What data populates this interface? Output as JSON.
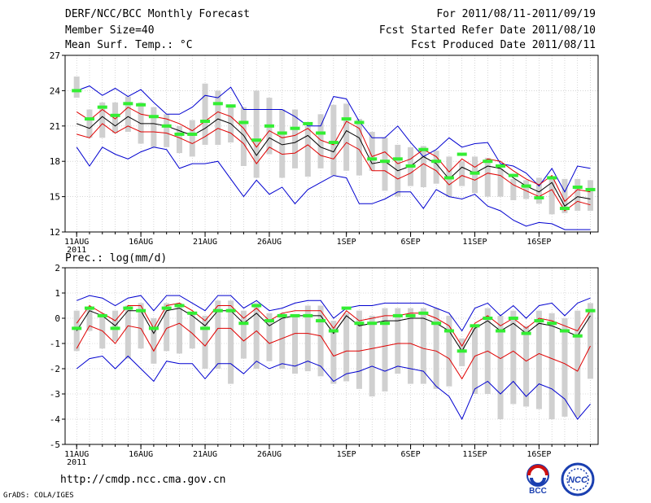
{
  "header": {
    "title": "DERF/NCC/BCC Monthly Forecast",
    "member_size": "Member Size=40",
    "variable": "Mean Surf. Temp.: °C",
    "period": "For 2011/08/11-2011/09/19",
    "started": "Fcst Started Refer Date 2011/08/10",
    "produced": "Fcst Produced Date 2011/08/11"
  },
  "footer": {
    "url": "http://cmdp.ncc.cma.gov.cn",
    "credit": "GrADS: COLA/IGES",
    "logo_bcc": "BCC",
    "logo_ncc": "NCC"
  },
  "colors": {
    "mean": "#000000",
    "spread": "#e00000",
    "envelope": "#0000d0",
    "box": "#d0d0d0",
    "marker": "#33ee33"
  },
  "chart_data": [
    {
      "type": "line",
      "title": "Mean Surf. Temp.: °C",
      "ylim": [
        12,
        27
      ],
      "yticks": [
        12,
        15,
        18,
        21,
        24,
        27
      ],
      "xlabels": [
        "11AUG",
        "16AUG",
        "21AUG",
        "26AUG",
        "1SEP",
        "6SEP",
        "11SEP",
        "16SEP"
      ],
      "xlabel_days": [
        0,
        5,
        10,
        15,
        21,
        26,
        31,
        36
      ],
      "year_label": "2011",
      "series": {
        "mean": [
          21.2,
          20.8,
          21.8,
          21,
          21.8,
          21.2,
          21.2,
          21,
          20.6,
          20.2,
          20.8,
          21.6,
          21.2,
          20.2,
          18.5,
          20,
          19.4,
          19.6,
          20.2,
          19.2,
          18.8,
          20.6,
          20,
          17.8,
          18,
          17.2,
          17.6,
          18.4,
          17.8,
          16.5,
          17.5,
          17.0,
          17.6,
          17.4,
          16.6,
          15.9,
          15.4,
          16.2,
          14.2,
          15,
          14.8
        ],
        "upper": [
          22.2,
          21.5,
          22.4,
          21.6,
          22.6,
          22,
          21.8,
          21.6,
          21.2,
          20.6,
          21.4,
          22.2,
          21.8,
          20.8,
          19.2,
          20.6,
          20,
          20.2,
          20.8,
          19.8,
          19.4,
          21.4,
          20.8,
          18.4,
          18.8,
          17.8,
          18.2,
          19,
          18.4,
          17.1,
          18.2,
          17.5,
          18.2,
          18,
          17.2,
          16.5,
          16,
          16.8,
          14.6,
          15.6,
          15.4
        ],
        "lower": [
          20.3,
          20,
          21.2,
          20.4,
          21.0,
          20.5,
          20.5,
          20.4,
          20,
          19.5,
          20.1,
          20.8,
          20.4,
          19.5,
          17.8,
          19.2,
          18.6,
          18.7,
          19.4,
          18.5,
          18.2,
          19.6,
          19.0,
          17.2,
          17.2,
          16.5,
          17,
          17.8,
          17.2,
          16,
          16.8,
          16.4,
          17,
          16.8,
          16,
          15.5,
          15,
          15.6,
          13.8,
          14.6,
          14.3
        ],
        "max": [
          24,
          24.4,
          23.6,
          24.2,
          23.5,
          24.1,
          23.0,
          22.0,
          22.0,
          22.6,
          23.6,
          23.4,
          24.3,
          22.4,
          22.4,
          22.4,
          22.4,
          21.8,
          21.0,
          21.0,
          23.5,
          23.3,
          21.4,
          20.0,
          20.0,
          21.0,
          19.6,
          18.4,
          19.0,
          20.0,
          19.2,
          19.5,
          19.6,
          17.8,
          17.6,
          17.0,
          15.9,
          17.4,
          15.4,
          17.6,
          17.4
        ],
        "min": [
          19.2,
          17.6,
          19.2,
          18.6,
          18.2,
          18.8,
          19.2,
          19,
          17.4,
          17.8,
          17.8,
          18,
          16.5,
          15,
          16.4,
          15.2,
          15.8,
          14.4,
          15.6,
          16.2,
          16.8,
          16.6,
          14.4,
          14.4,
          14.8,
          15.4,
          15.4,
          14,
          15.6,
          15.0,
          14.8,
          15.2,
          14.2,
          13.8,
          13,
          12.5,
          12.8,
          12.7,
          12.2,
          12.2,
          12.2
        ],
        "box_top": [
          25.2,
          22.4,
          23,
          23,
          23.5,
          23.0,
          22.6,
          22.0,
          21.0,
          21.5,
          24.6,
          24.0,
          22.6,
          22.6,
          24.0,
          23.4,
          22.4,
          22.4,
          21.0,
          22.0,
          22.8,
          22.9,
          21.6,
          20.5,
          20,
          19.4,
          19.2,
          19.3,
          18.9,
          18.4,
          18,
          18.4,
          18.3,
          17.4,
          16.5,
          16.4,
          16.6,
          16.7,
          16.5,
          16.5,
          16.4
        ],
        "box_bottom": [
          23.4,
          20,
          20,
          20.4,
          20.5,
          19.5,
          19.2,
          19.2,
          18.7,
          18.4,
          19.4,
          19.4,
          19.6,
          17.6,
          16.6,
          18.6,
          16.6,
          17.4,
          16.7,
          17.4,
          16.8,
          17.2,
          16.8,
          17.2,
          15.5,
          15,
          15.9,
          15.8,
          16.1,
          15,
          15.9,
          15.3,
          15,
          15,
          14.7,
          14.8,
          14.4,
          13.5,
          13.6,
          13.8,
          13.8
        ],
        "marker": [
          24,
          21.6,
          22.6,
          21.9,
          22.9,
          22.8,
          21.8,
          21.0,
          20.3,
          20.3,
          21.4,
          22.9,
          22.7,
          21.3,
          19.8,
          21.0,
          20.4,
          20.8,
          21.2,
          20.4,
          19.6,
          21.6,
          21.3,
          18.2,
          18.0,
          18.2,
          17.6,
          19.0,
          18.0,
          16.6,
          18.6,
          17.0,
          18.0,
          17.6,
          16.8,
          15.9,
          14.9,
          16.6,
          14.0,
          15.8,
          15.6
        ]
      }
    },
    {
      "type": "line",
      "title": "Prec.: log(mm/d)",
      "ylim": [
        -5,
        2
      ],
      "yticks": [
        -5,
        -4,
        -3,
        -2,
        -1,
        0,
        1,
        2
      ],
      "xlabels": [
        "11AUG",
        "16AUG",
        "21AUG",
        "26AUG",
        "1SEP",
        "6SEP",
        "11SEP",
        "16SEP"
      ],
      "xlabel_days": [
        0,
        5,
        10,
        15,
        21,
        26,
        31,
        36
      ],
      "year_label": "2011",
      "series": {
        "mean": [
          -0.5,
          0.3,
          0.1,
          -0.3,
          0.3,
          0.3,
          -0.6,
          0.3,
          0.4,
          0.1,
          -0.3,
          0.3,
          0.3,
          -0.2,
          0.2,
          -0.3,
          0,
          0.1,
          0.1,
          0.1,
          -0.6,
          0.1,
          -0.3,
          -0.2,
          -0.1,
          -0.1,
          0.0,
          0.0,
          -0.2,
          -0.5,
          -1.3,
          -0.4,
          -0.1,
          -0.5,
          -0.2,
          -0.6,
          -0.2,
          -0.3,
          -0.5,
          -0.7,
          0.1
        ],
        "upper": [
          -0.2,
          0.5,
          0.2,
          -0.1,
          0.5,
          0.5,
          -0.4,
          0.5,
          0.6,
          0.3,
          -0.1,
          0.5,
          0.5,
          0.0,
          0.4,
          -0.1,
          0.2,
          0.3,
          0.3,
          0.3,
          -0.4,
          0.3,
          -0.1,
          0.0,
          0.1,
          0.1,
          0.2,
          0.2,
          0.0,
          -0.3,
          -1.1,
          -0.2,
          0.1,
          -0.3,
          0.0,
          -0.4,
          0.0,
          -0.1,
          -0.3,
          -0.5,
          0.3
        ],
        "lower": [
          -1.2,
          -0.3,
          -0.5,
          -1.0,
          -0.3,
          -0.4,
          -1.3,
          -0.4,
          -0.2,
          -0.6,
          -1.1,
          -0.4,
          -0.4,
          -0.9,
          -0.5,
          -1.0,
          -0.8,
          -0.6,
          -0.6,
          -0.7,
          -1.5,
          -1.3,
          -1.3,
          -1.2,
          -1.1,
          -1.0,
          -1.0,
          -1.2,
          -1.3,
          -1.6,
          -2.4,
          -1.5,
          -1.3,
          -1.6,
          -1.3,
          -1.7,
          -1.4,
          -1.6,
          -1.8,
          -2.1,
          -1.1
        ],
        "max": [
          0.7,
          0.9,
          0.8,
          0.5,
          0.8,
          0.9,
          0.3,
          0.9,
          0.9,
          0.6,
          0.3,
          0.9,
          0.9,
          0.4,
          0.7,
          0.3,
          0.4,
          0.6,
          0.7,
          0.7,
          0.0,
          0.4,
          0.5,
          0.5,
          0.6,
          0.6,
          0.6,
          0.6,
          0.4,
          0.2,
          -0.5,
          0.4,
          0.6,
          0.1,
          0.5,
          0.0,
          0.5,
          0.6,
          0.1,
          0.6,
          0.8
        ],
        "min": [
          -2.0,
          -1.6,
          -1.5,
          -2.0,
          -1.5,
          -2.0,
          -2.5,
          -1.7,
          -1.8,
          -1.8,
          -2.4,
          -1.8,
          -1.8,
          -2.2,
          -1.7,
          -2.0,
          -1.8,
          -1.9,
          -1.7,
          -1.9,
          -2.5,
          -2.2,
          -2.1,
          -1.9,
          -2.1,
          -1.9,
          -2.0,
          -2.1,
          -2.7,
          -3.1,
          -4.0,
          -2.8,
          -2.5,
          -3.0,
          -2.5,
          -3.1,
          -2.6,
          -2.8,
          -3.2,
          -4.0,
          -3.4
        ],
        "box_top": [
          0.3,
          0.4,
          0.2,
          0.3,
          0.5,
          0.6,
          0.0,
          0.6,
          0.6,
          0.2,
          0.1,
          0.7,
          0.7,
          0.3,
          0.6,
          0.2,
          0.2,
          0.1,
          0.5,
          0.5,
          -0.1,
          0.2,
          0.3,
          0.1,
          0.4,
          0.4,
          0.4,
          0.4,
          0.4,
          0.1,
          -0.8,
          -0.3,
          0.4,
          0.1,
          0.3,
          -0.3,
          0.3,
          0.2,
          0.0,
          0.3,
          0.6
        ],
        "box_bottom": [
          -1.3,
          -0.5,
          -1.2,
          -0.9,
          -1.6,
          -1.2,
          -1.8,
          -1.3,
          -1.4,
          -1.2,
          -2.0,
          -2.0,
          -2.6,
          -1.6,
          -2.0,
          -1.7,
          -2.0,
          -2.2,
          -2.1,
          -2.3,
          -2.6,
          -2.5,
          -2.8,
          -3.1,
          -2.9,
          -2.2,
          -2.6,
          -2.6,
          -2.8,
          -2.7,
          -1.9,
          -3.0,
          -3.0,
          -4.0,
          -3.4,
          -3.5,
          -3.6,
          -4.0,
          -3.9,
          -3.9,
          -2.4
        ],
        "marker": [
          -0.4,
          0.4,
          0.1,
          -0.4,
          0.4,
          0.3,
          -0.4,
          0.4,
          0.5,
          0.2,
          -0.4,
          0.3,
          0.3,
          -0.2,
          0.5,
          -0.1,
          0.1,
          0.1,
          0.1,
          -0.1,
          -0.5,
          0.4,
          -0.2,
          -0.2,
          -0.2,
          0.1,
          0.1,
          0.2,
          -0.2,
          -0.5,
          -1.3,
          -0.3,
          0.0,
          -0.5,
          0.0,
          -0.6,
          -0.1,
          -0.2,
          -0.5,
          -0.7,
          0.3
        ]
      }
    }
  ]
}
